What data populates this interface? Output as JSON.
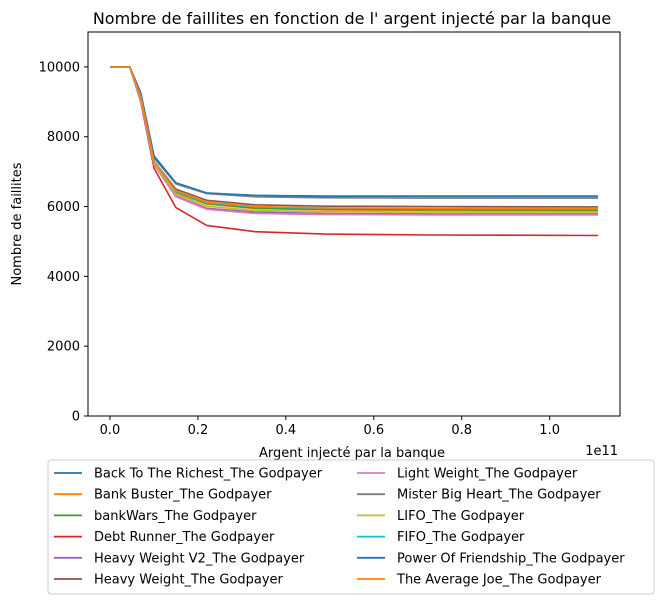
{
  "chart_data": {
    "type": "line",
    "title": "Nombre de faillites en fonction de l' argent injecté par la banque",
    "xlabel": "Argent injecté par la banque",
    "ylabel": "Nombre de faillites",
    "x_offset_label": "1e11",
    "x_scale_factor": 100000000000,
    "xlim": [
      -5000000000,
      116000000000
    ],
    "ylim": [
      0,
      11000
    ],
    "x_ticks": [
      0,
      20000000000,
      40000000000,
      60000000000,
      80000000000,
      100000000000
    ],
    "x_tick_labels": [
      "0.0",
      "0.2",
      "0.4",
      "0.6",
      "0.8",
      "1.0"
    ],
    "y_ticks": [
      0,
      2000,
      4000,
      6000,
      8000,
      10000
    ],
    "y_tick_labels": [
      "0",
      "2000",
      "4000",
      "6000",
      "8000",
      "10000"
    ],
    "grid": false,
    "legend_placement": "below-center, 2 columns",
    "x": [
      0,
      4500000000,
      7000000000,
      10000000000,
      15000000000,
      22000000000,
      33000000000,
      49000000000,
      74000000000,
      111000000000
    ],
    "series": [
      {
        "name": "Back To The Richest_The Godpayer",
        "color": "#1f77b4",
        "values": [
          10000,
          10000,
          9200,
          7400,
          6650,
          6380,
          6320,
          6300,
          6300,
          6300
        ]
      },
      {
        "name": "Bank Buster_The Godpayer",
        "color": "#ff7f0e",
        "values": [
          10000,
          10000,
          9100,
          7250,
          6400,
          6070,
          5940,
          5900,
          5890,
          5880
        ]
      },
      {
        "name": "bankWars_The Godpayer",
        "color": "#2ca02c",
        "values": [
          10000,
          10000,
          9100,
          7250,
          6420,
          6090,
          5960,
          5920,
          5910,
          5900
        ]
      },
      {
        "name": "Debt Runner_The Godpayer",
        "color": "#d62728",
        "values": [
          10000,
          10000,
          9000,
          7100,
          5970,
          5460,
          5280,
          5210,
          5185,
          5170
        ]
      },
      {
        "name": "Heavy Weight V2_The Godpayer",
        "color": "#9467bd",
        "values": [
          10000,
          10000,
          9050,
          7200,
          6300,
          5950,
          5840,
          5800,
          5790,
          5790
        ]
      },
      {
        "name": "Heavy Weight_The Godpayer",
        "color": "#8c564b",
        "values": [
          10000,
          10000,
          9150,
          7300,
          6500,
          6180,
          6050,
          6010,
          6000,
          5990
        ]
      },
      {
        "name": "Light Weight_The Godpayer",
        "color": "#e377c2",
        "values": [
          10000,
          10000,
          9050,
          7200,
          6280,
          5920,
          5800,
          5770,
          5760,
          5760
        ]
      },
      {
        "name": "Mister Big Heart_The Godpayer",
        "color": "#7f7f7f",
        "values": [
          10000,
          10000,
          9250,
          7450,
          6650,
          6370,
          6280,
          6250,
          6240,
          6240
        ]
      },
      {
        "name": "LIFO_The Godpayer",
        "color": "#bcbd22",
        "values": [
          10000,
          10000,
          9100,
          7250,
          6350,
          6010,
          5890,
          5850,
          5840,
          5840
        ]
      },
      {
        "name": "FIFO_The Godpayer",
        "color": "#17becf",
        "values": [
          10000,
          10000,
          9150,
          7300,
          6430,
          6110,
          5990,
          5950,
          5940,
          5930
        ]
      },
      {
        "name": "Power Of Friendship_The Godpayer",
        "color": "#1f77b4",
        "values": [
          10000,
          10000,
          9250,
          7450,
          6680,
          6390,
          6320,
          6290,
          6290,
          6290
        ]
      },
      {
        "name": "The Average Joe_The Godpayer",
        "color": "#ff7f0e",
        "values": [
          10000,
          10000,
          9150,
          7300,
          6450,
          6130,
          6000,
          5960,
          5950,
          5940
        ]
      }
    ]
  }
}
